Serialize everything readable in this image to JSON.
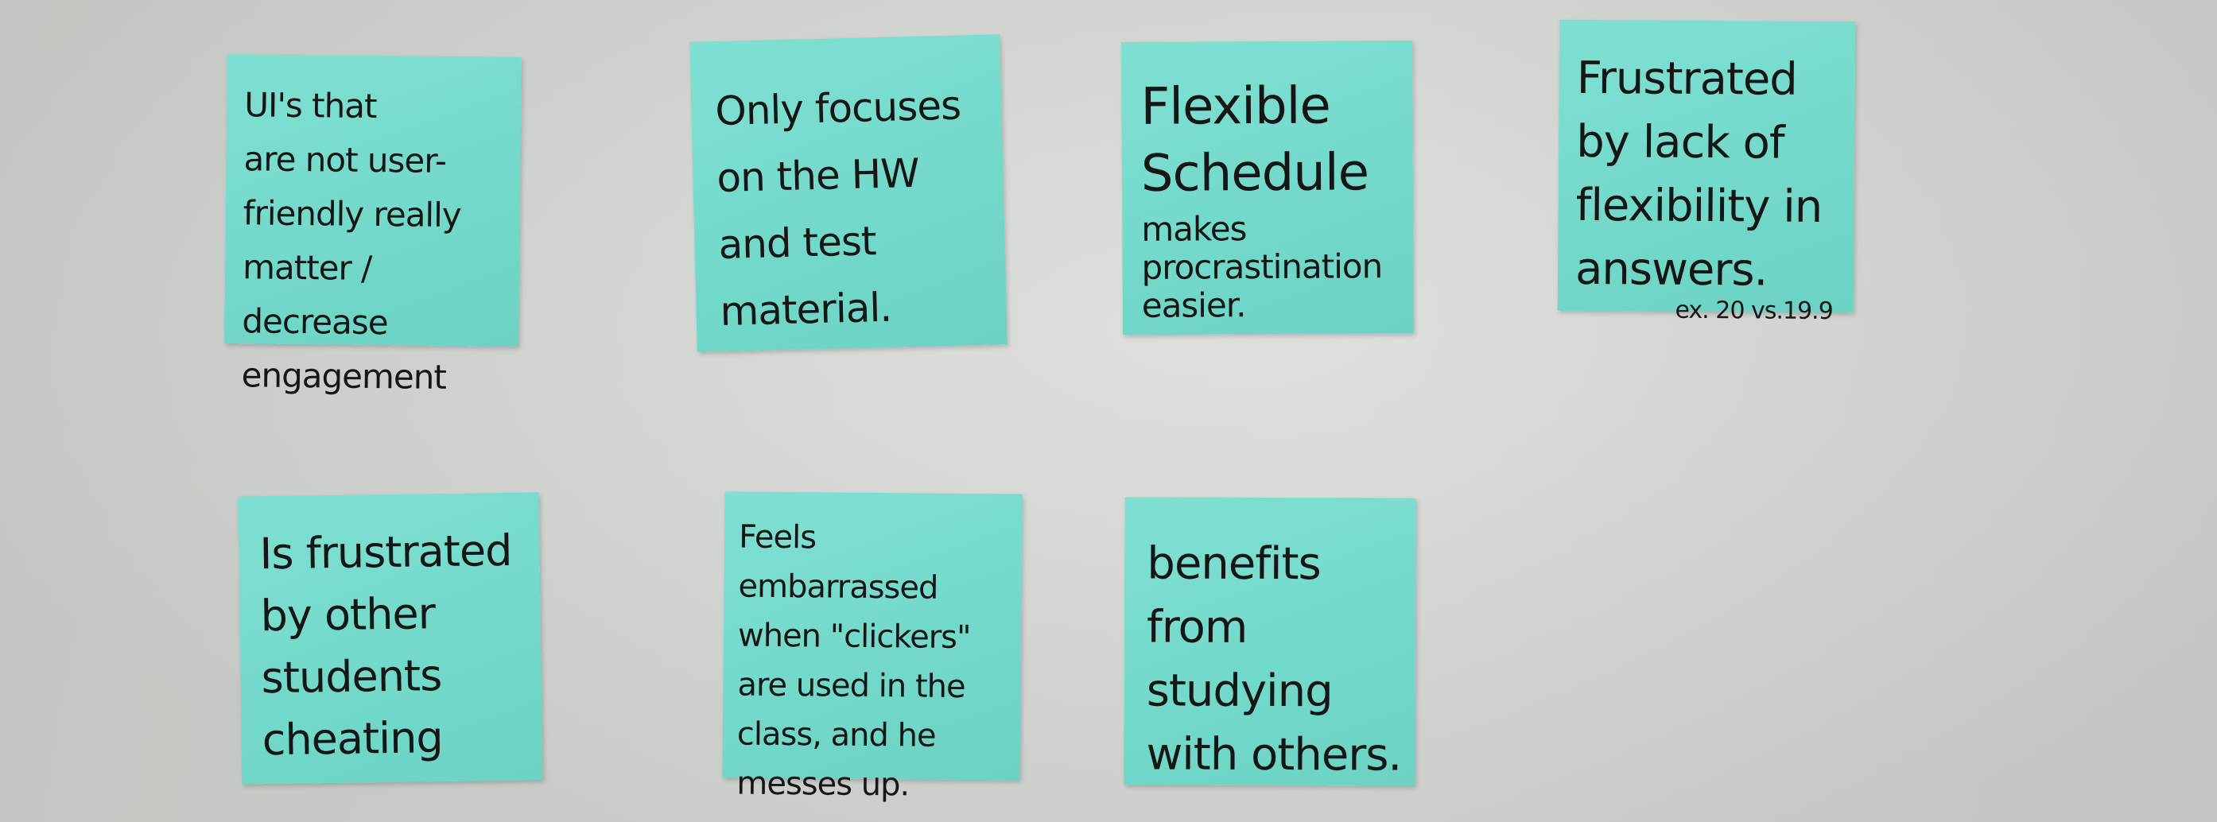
{
  "board": {
    "note_color": "#73d9cb",
    "wall_color": "#d6d8d3",
    "notes": [
      {
        "text": "UI's that\nare not user-\nfriendly really\nmatter / decrease\nengagement"
      },
      {
        "text": "Only focuses\non the HW\nand test\nmaterial."
      },
      {
        "text": "Flexible\nSchedule",
        "sub": "makes\nprocrastination\neasier."
      },
      {
        "text": "Frustrated\nby lack of\nflexibility in\nanswers.",
        "sub": "ex. 20 vs.19.9"
      },
      {
        "text": "Is frustrated\nby other\nstudents\ncheating"
      },
      {
        "text": "Feels embarrassed\nwhen \"clickers\"\nare used in the\nclass, and he\nmesses up."
      },
      {
        "text": "benefits\nfrom studying\nwith others."
      }
    ]
  }
}
